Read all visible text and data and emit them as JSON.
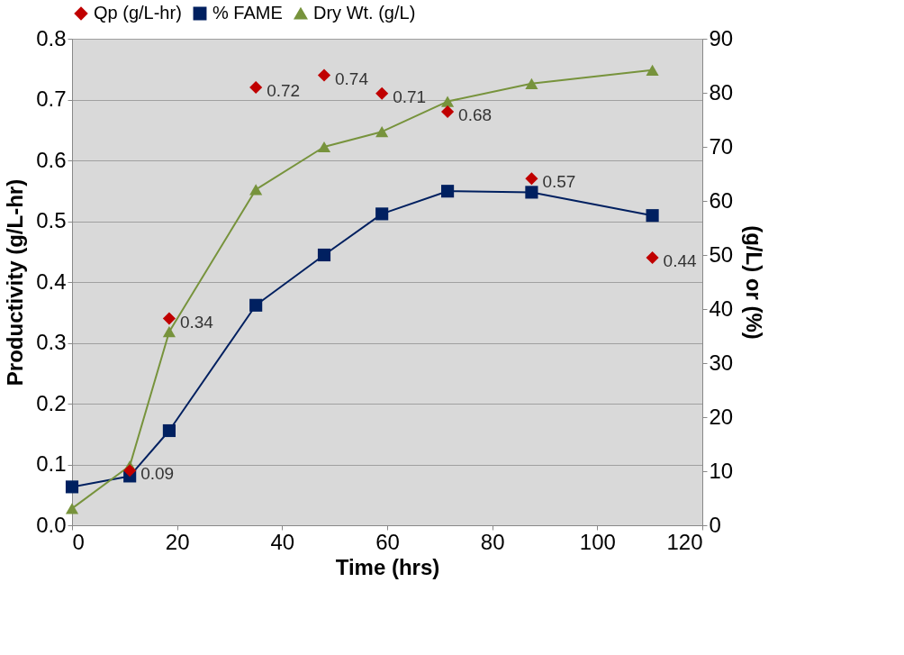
{
  "chart_data": {
    "type": "line",
    "xlabel": "Time (hrs)",
    "ylabel": "Productivity (g/L-hr)",
    "y2label": "(g/L) or (%)",
    "xlim": [
      0,
      120
    ],
    "xticks": [
      0,
      20,
      40,
      60,
      80,
      100,
      120
    ],
    "ylim": [
      0,
      0.8
    ],
    "yticks": [
      {
        "value": 0,
        "label": "0.0"
      },
      {
        "value": 0.1,
        "label": "0.1"
      },
      {
        "value": 0.2,
        "label": "0.2"
      },
      {
        "value": 0.3,
        "label": "0.3"
      },
      {
        "value": 0.4,
        "label": "0.4"
      },
      {
        "value": 0.5,
        "label": "0.5"
      },
      {
        "value": 0.6,
        "label": "0.6"
      },
      {
        "value": 0.7,
        "label": "0.7"
      },
      {
        "value": 0.8,
        "label": "0.8"
      }
    ],
    "y2lim": [
      0,
      90
    ],
    "y2ticks": [
      0,
      10,
      20,
      30,
      40,
      50,
      60,
      70,
      80,
      90
    ],
    "x": [
      0,
      11,
      18.5,
      35,
      48,
      59,
      71.5,
      87.5,
      110.5
    ],
    "series": [
      {
        "name": "Qp (g/L-hr)",
        "type": "scatter",
        "marker": "diamond",
        "color": "#c00000",
        "x": [
          11,
          18.5,
          35,
          48,
          59,
          71.5,
          87.5,
          110.5
        ],
        "values": [
          0.09,
          0.34,
          0.72,
          0.74,
          0.71,
          0.68,
          0.57,
          0.44
        ],
        "data_labels": true
      },
      {
        "name": "% FAME",
        "marker": "square",
        "color": "#002060",
        "axis": "y2",
        "values": [
          7.1,
          9.1,
          17.5,
          40.7,
          50,
          57.6,
          61.8,
          61.6,
          57.3
        ]
      },
      {
        "name": "Dry Wt. (g/L)",
        "marker": "triangle",
        "color": "#77933c",
        "axis": "y2",
        "values": [
          3.1,
          11.0,
          35.8,
          62.1,
          70,
          72.8,
          78.4,
          81.7,
          84.2
        ]
      }
    ],
    "grid": "y",
    "legend": "top"
  }
}
